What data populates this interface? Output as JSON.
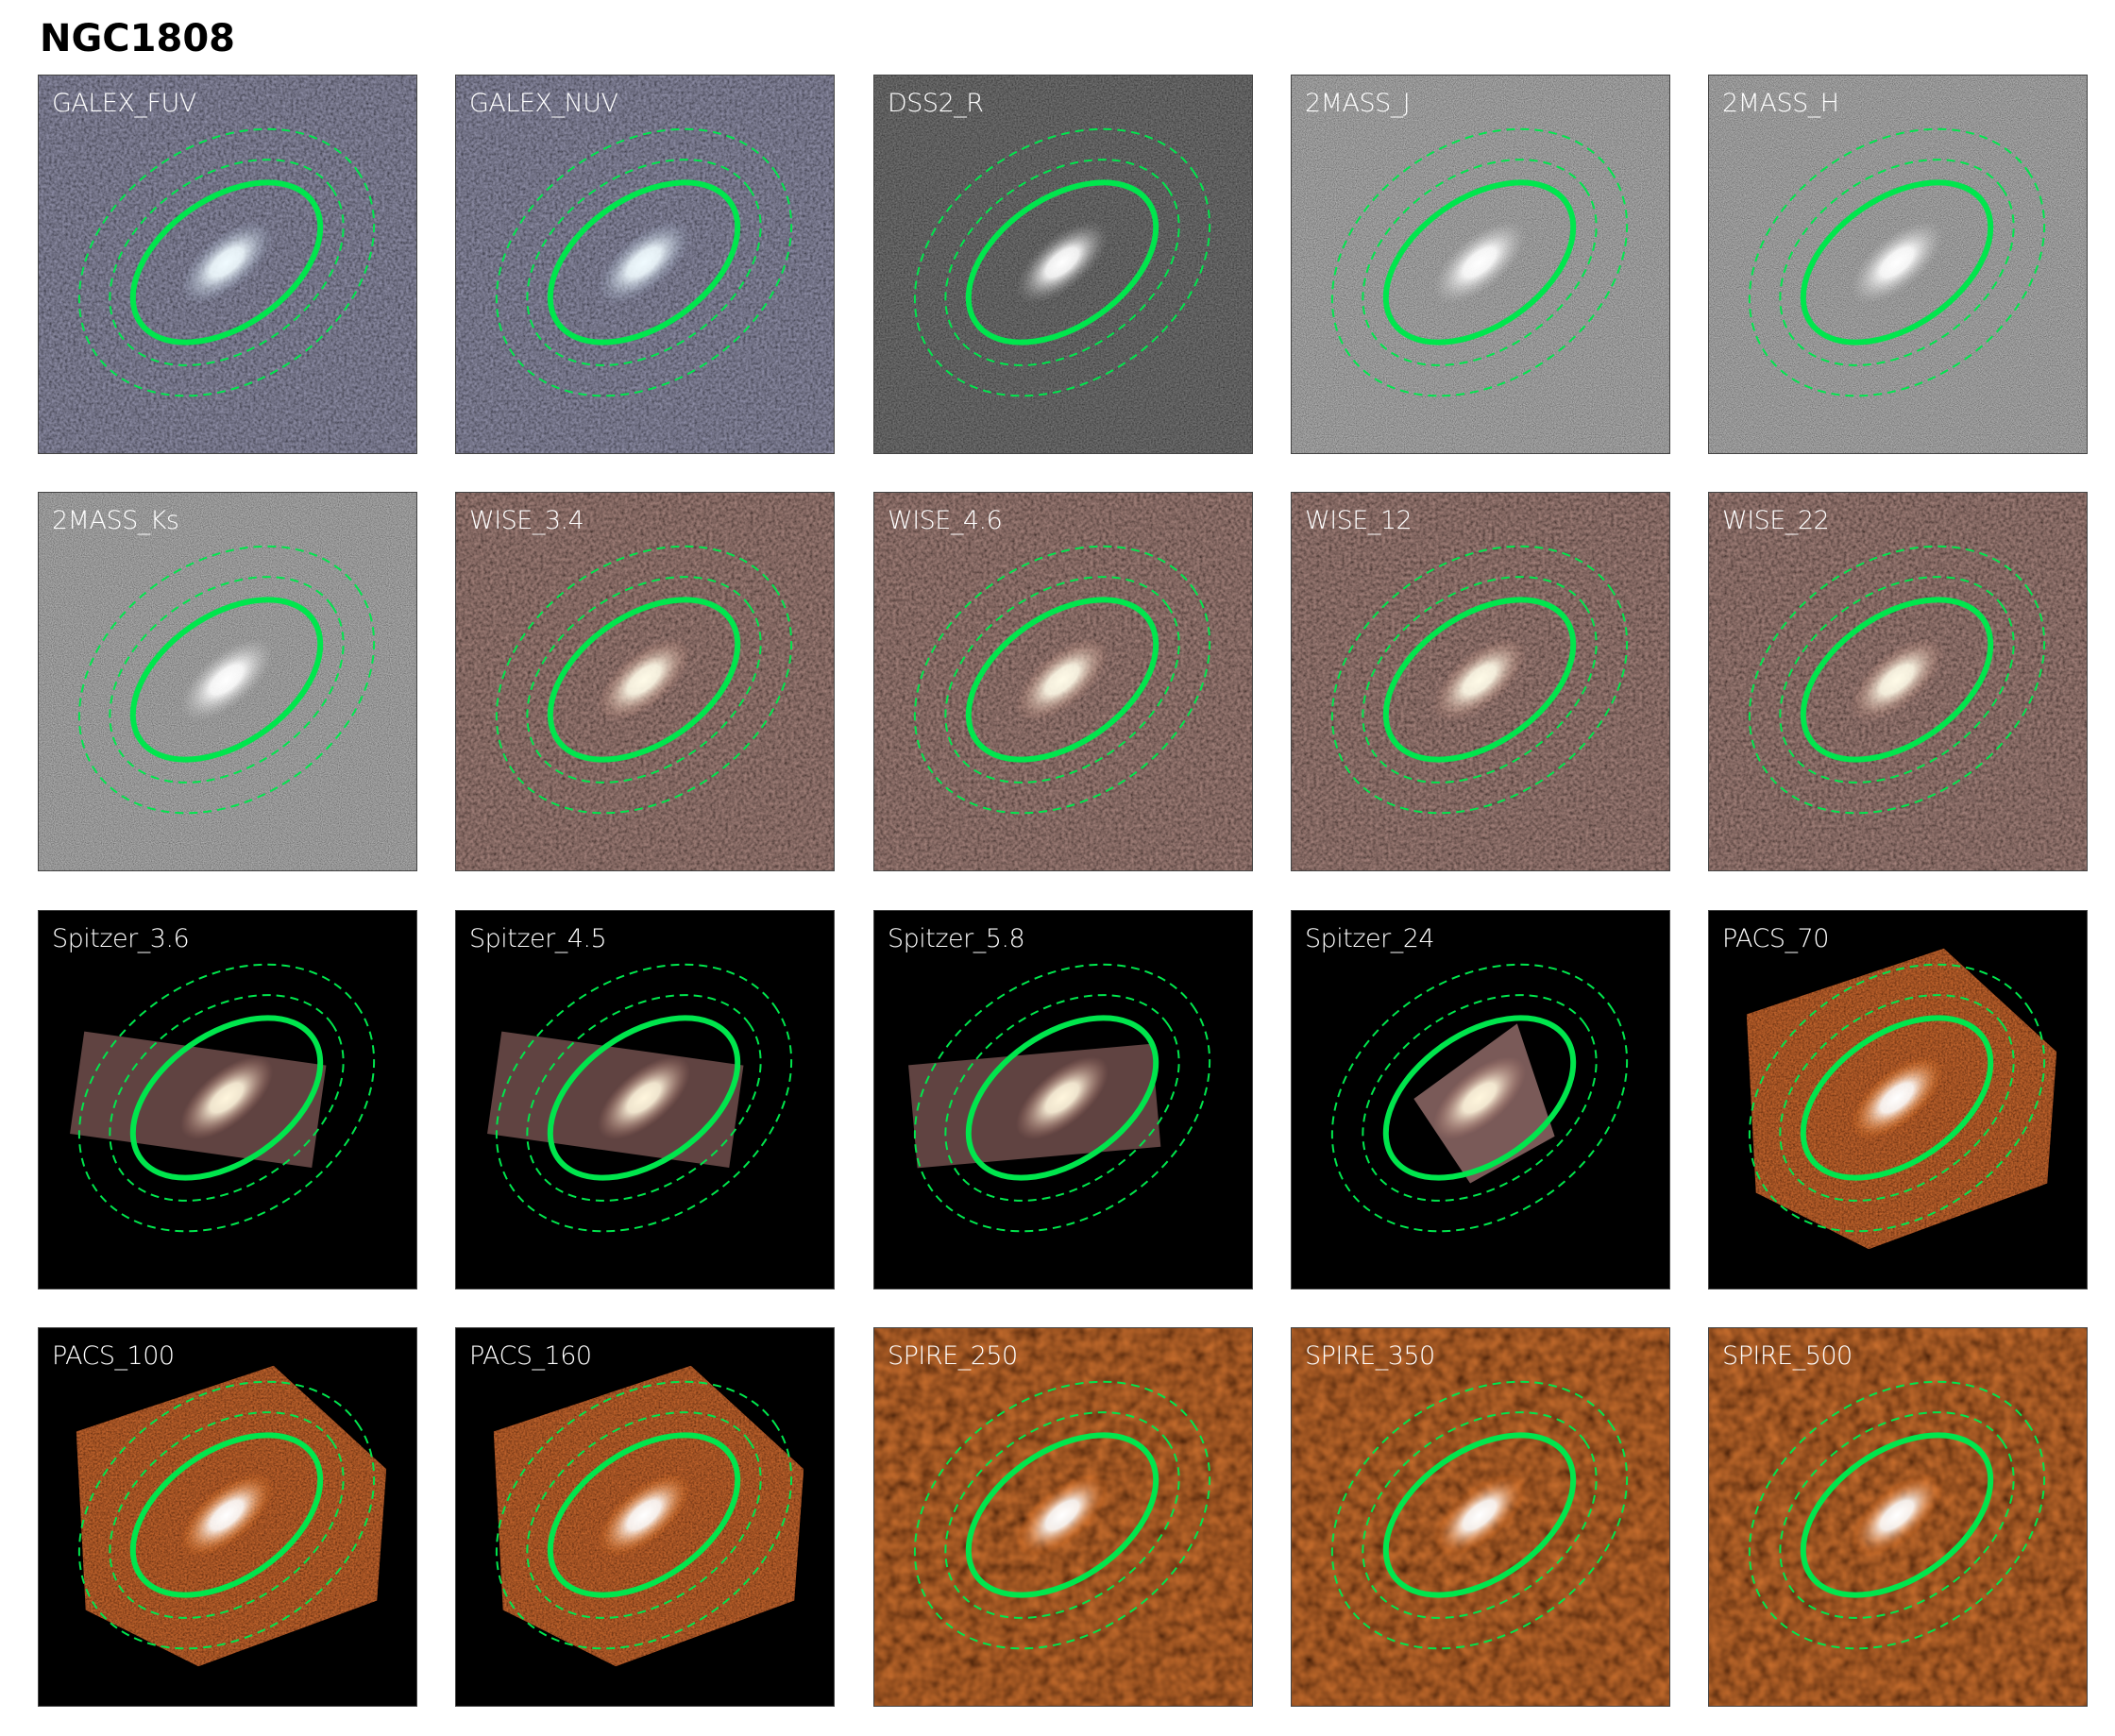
{
  "title": "NGC1808",
  "aperture_colors": {
    "main": "#00e64d",
    "dashed": "#00e64d"
  },
  "panels": [
    {
      "label": "GALEX_FUV",
      "theme": "galex"
    },
    {
      "label": "GALEX_NUV",
      "theme": "galex"
    },
    {
      "label": "DSS2_R",
      "theme": "dss"
    },
    {
      "label": "2MASS_J",
      "theme": "twomass"
    },
    {
      "label": "2MASS_H",
      "theme": "twomass"
    },
    {
      "label": "2MASS_Ks",
      "theme": "twomass"
    },
    {
      "label": "WISE_3.4",
      "theme": "wise"
    },
    {
      "label": "WISE_4.6",
      "theme": "wise"
    },
    {
      "label": "WISE_12",
      "theme": "wise"
    },
    {
      "label": "WISE_22",
      "theme": "wise"
    },
    {
      "label": "Spitzer_3.6",
      "theme": "spitzer"
    },
    {
      "label": "Spitzer_4.5",
      "theme": "spitzer"
    },
    {
      "label": "Spitzer_5.8",
      "theme": "spitzer"
    },
    {
      "label": "Spitzer_24",
      "theme": "spitzer24"
    },
    {
      "label": "PACS_70",
      "theme": "pacs"
    },
    {
      "label": "PACS_100",
      "theme": "pacs"
    },
    {
      "label": "PACS_160",
      "theme": "pacs"
    },
    {
      "label": "SPIRE_250",
      "theme": "spire"
    },
    {
      "label": "SPIRE_350",
      "theme": "spire"
    },
    {
      "label": "SPIRE_500",
      "theme": "spire"
    }
  ]
}
